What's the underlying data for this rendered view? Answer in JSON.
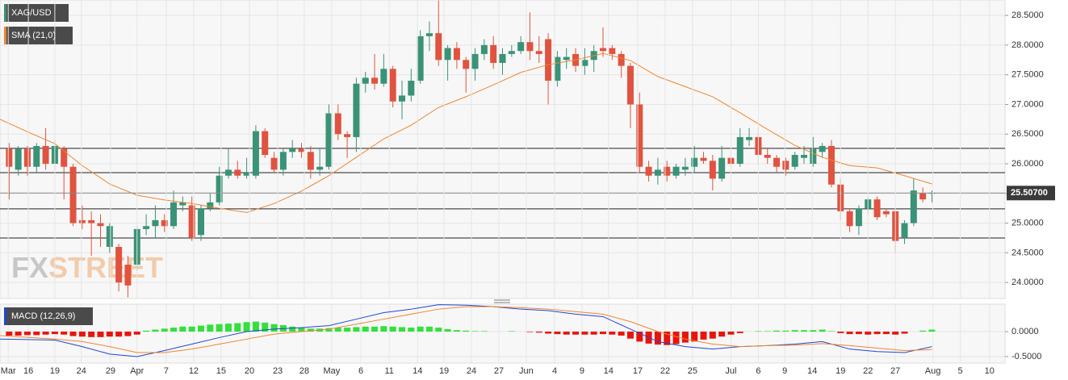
{
  "chart_data": [
    {
      "type": "candlestick",
      "name": "XAG/USD",
      "up_color": "#3a9277",
      "down_color": "#e0533f",
      "x": [
        1,
        2,
        3,
        4,
        5,
        6,
        7,
        8,
        9,
        10,
        11,
        12,
        13,
        14,
        15,
        16,
        17,
        18,
        19,
        20,
        21,
        22,
        23,
        24,
        25,
        26,
        27,
        28,
        29,
        30,
        31,
        32,
        33,
        34,
        35,
        36,
        37,
        38,
        39,
        40,
        41,
        42,
        43,
        44,
        45,
        46,
        47,
        48,
        49,
        50,
        51,
        52,
        53,
        54,
        55,
        56,
        57,
        58,
        59,
        60,
        61,
        62,
        63,
        64,
        65,
        66,
        67,
        68,
        69,
        70,
        71,
        72,
        73,
        74,
        75,
        76,
        77,
        78,
        79,
        80,
        81,
        82,
        83,
        84,
        85,
        86,
        87,
        88,
        89,
        90,
        91,
        92,
        93,
        94,
        95,
        96,
        97,
        98,
        99,
        100,
        101,
        102
      ],
      "open": [
        26.25,
        25.9,
        26.25,
        25.95,
        26.3,
        26.0,
        26.25,
        25.95,
        25.05,
        25.05,
        25.0,
        24.6,
        24.6,
        24.3,
        24.3,
        24.9,
        24.95,
        25.05,
        24.95,
        25.3,
        25.3,
        24.8,
        25.25,
        25.35,
        25.8,
        25.9,
        25.8,
        25.8,
        26.55,
        26.1,
        25.9,
        26.2,
        26.25,
        26.2,
        25.9,
        25.95,
        26.85,
        26.5,
        26.45,
        27.35,
        27.45,
        27.35,
        27.6,
        27.05,
        27.15,
        27.4,
        28.15,
        28.2,
        27.75,
        27.95,
        27.75,
        27.6,
        27.85,
        28.0,
        27.7,
        27.85,
        27.9,
        28.05,
        27.9,
        28.1,
        27.4,
        27.75,
        27.85,
        27.65,
        27.75,
        27.95,
        27.95,
        27.85,
        27.65,
        27.0,
        25.95,
        25.8,
        25.95,
        25.8,
        25.9,
        25.95,
        26.1,
        26.05,
        25.75,
        26.1,
        26.0,
        26.4,
        26.45,
        26.15,
        26.1,
        26.05,
        25.95,
        26.1,
        26.0,
        26.2,
        26.3,
        25.65,
        25.2,
        24.95,
        25.25,
        25.4,
        25.2,
        25.2,
        24.75,
        25.0,
        25.5,
        25.5
      ],
      "high": [
        26.35,
        26.3,
        26.3,
        26.35,
        26.6,
        26.4,
        26.3,
        26.0,
        25.3,
        25.2,
        25.15,
        25.0,
        24.65,
        24.45,
        24.95,
        25.15,
        25.3,
        25.15,
        25.55,
        25.45,
        25.45,
        25.3,
        25.5,
        25.95,
        26.25,
        26.05,
        26.1,
        26.65,
        26.6,
        26.2,
        26.25,
        26.4,
        26.35,
        26.3,
        26.25,
        27.0,
        27.0,
        26.55,
        27.45,
        27.55,
        27.85,
        27.85,
        27.65,
        27.4,
        27.6,
        28.25,
        28.4,
        28.75,
        28.0,
        28.05,
        27.8,
        27.95,
        28.1,
        28.15,
        27.95,
        28.0,
        28.15,
        28.55,
        28.15,
        28.2,
        27.9,
        27.95,
        27.95,
        27.95,
        28.0,
        28.3,
        28.0,
        27.9,
        27.7,
        27.2,
        26.05,
        26.1,
        26.05,
        26.0,
        26.1,
        26.3,
        26.2,
        26.15,
        26.3,
        26.2,
        26.6,
        26.6,
        26.6,
        26.25,
        26.15,
        26.1,
        26.2,
        26.3,
        26.45,
        26.35,
        26.4,
        25.75,
        25.25,
        25.3,
        25.45,
        25.45,
        25.25,
        25.25,
        25.05,
        25.75,
        25.6,
        25.55
      ],
      "low": [
        25.4,
        25.8,
        25.8,
        25.85,
        25.9,
        25.9,
        25.4,
        24.95,
        24.9,
        24.45,
        24.6,
        24.5,
        23.85,
        23.75,
        24.2,
        24.8,
        24.75,
        24.85,
        24.9,
        25.2,
        24.7,
        24.7,
        25.2,
        25.3,
        25.75,
        25.75,
        25.75,
        25.75,
        26.1,
        25.85,
        25.8,
        26.1,
        26.1,
        25.75,
        25.8,
        25.9,
        26.4,
        26.1,
        26.2,
        27.2,
        27.25,
        27.3,
        26.95,
        26.75,
        27.05,
        27.35,
        27.9,
        27.65,
        27.4,
        27.6,
        27.2,
        27.4,
        27.75,
        27.6,
        27.5,
        27.8,
        27.85,
        27.75,
        27.7,
        27.0,
        27.3,
        27.6,
        27.55,
        27.5,
        27.55,
        27.8,
        27.75,
        27.45,
        26.6,
        25.85,
        25.7,
        25.65,
        25.7,
        25.75,
        25.8,
        25.85,
        26.0,
        25.55,
        25.7,
        25.95,
        25.95,
        26.3,
        26.0,
        26.0,
        25.85,
        25.8,
        25.9,
        26.0,
        25.95,
        26.1,
        25.6,
        25.05,
        24.85,
        24.8,
        25.15,
        25.05,
        25.1,
        24.5,
        24.65,
        24.95,
        25.35,
        25.35
      ],
      "close": [
        25.95,
        26.25,
        25.95,
        26.3,
        26.0,
        26.3,
        25.95,
        25.0,
        25.0,
        25.0,
        24.95,
        24.95,
        24.0,
        23.95,
        24.9,
        24.95,
        25.05,
        24.95,
        25.35,
        25.35,
        24.75,
        25.25,
        25.35,
        25.8,
        25.9,
        25.8,
        25.85,
        26.55,
        26.15,
        25.9,
        26.2,
        26.25,
        26.2,
        25.9,
        25.95,
        26.85,
        26.5,
        26.45,
        27.35,
        27.45,
        27.35,
        27.6,
        27.05,
        27.15,
        27.4,
        28.15,
        28.2,
        27.75,
        27.95,
        27.75,
        27.6,
        27.85,
        28.0,
        27.7,
        27.85,
        27.9,
        28.05,
        27.9,
        27.85,
        27.4,
        27.8,
        27.8,
        27.65,
        27.75,
        27.9,
        27.9,
        27.85,
        27.65,
        27.0,
        25.95,
        25.8,
        25.9,
        25.8,
        25.95,
        25.95,
        26.1,
        26.05,
        25.75,
        26.1,
        26.0,
        26.45,
        26.45,
        26.15,
        26.1,
        25.95,
        25.9,
        26.15,
        26.15,
        26.25,
        26.3,
        25.65,
        25.2,
        24.95,
        25.25,
        25.4,
        25.1,
        25.15,
        24.7,
        25.0,
        25.55,
        25.4,
        25.51
      ],
      "overlay": {
        "name": "SMA (21,0)",
        "color": "#f0852d",
        "x": [
          0,
          3,
          6,
          9,
          12,
          15,
          18,
          21,
          24,
          27,
          30,
          33,
          36,
          39,
          42,
          45,
          48,
          51,
          54,
          57,
          60,
          63,
          66,
          69,
          72,
          75,
          78,
          81,
          84,
          87,
          90,
          93,
          96,
          99,
          102
        ],
        "values": [
          26.75,
          26.54,
          26.34,
          25.97,
          25.66,
          25.47,
          25.39,
          25.33,
          25.25,
          25.18,
          25.33,
          25.54,
          25.8,
          26.11,
          26.42,
          26.65,
          26.95,
          27.13,
          27.33,
          27.54,
          27.67,
          27.75,
          27.86,
          27.74,
          27.47,
          27.3,
          27.13,
          26.86,
          26.58,
          26.31,
          26.11,
          25.97,
          25.93,
          25.8,
          25.66
        ]
      },
      "levels": [
        26.26,
        25.85,
        25.24,
        24.75
      ],
      "level_color": "#222222",
      "last_price": {
        "value": 25.507,
        "label": "25.50700"
      },
      "xlim": [
        0,
        110
      ],
      "ylim": [
        23.73,
        28.76
      ],
      "yticks": [
        {
          "value": 24,
          "label": "24.0000"
        },
        {
          "value": 24.5,
          "label": "24.5000"
        },
        {
          "value": 25,
          "label": "25.0000"
        },
        {
          "value": 25.5,
          "label": "25.5000"
        },
        {
          "value": 26,
          "label": "26.0000"
        },
        {
          "value": 26.5,
          "label": "26.5000"
        },
        {
          "value": 27,
          "label": "27.0000"
        },
        {
          "value": 27.5,
          "label": "27.5000"
        },
        {
          "value": 28,
          "label": "28.0000"
        },
        {
          "value": 28.5,
          "label": "28.5000"
        }
      ],
      "grid": true,
      "watermark": [
        "FX",
        "STREET"
      ]
    },
    {
      "type": "macd",
      "name": "MACD (12,26,9)",
      "legend_color": "#2146d4",
      "histogram": {
        "up_color": "#33e03d",
        "down_color": "#e8140c",
        "x": [
          1,
          2,
          3,
          4,
          5,
          6,
          7,
          8,
          9,
          10,
          11,
          12,
          13,
          14,
          15,
          16,
          17,
          18,
          19,
          20,
          21,
          22,
          23,
          24,
          25,
          26,
          27,
          28,
          29,
          30,
          31,
          32,
          33,
          34,
          35,
          36,
          37,
          38,
          39,
          40,
          41,
          42,
          43,
          44,
          45,
          46,
          47,
          48,
          49,
          50,
          51,
          52,
          53,
          54,
          55,
          56,
          57,
          58,
          59,
          60,
          61,
          62,
          63,
          64,
          65,
          66,
          67,
          68,
          69,
          70,
          71,
          72,
          73,
          74,
          75,
          76,
          77,
          78,
          79,
          80,
          81,
          82,
          83,
          84,
          85,
          86,
          87,
          88,
          89,
          90,
          91,
          92,
          93,
          94,
          95,
          96,
          97,
          98,
          99,
          100,
          101,
          102
        ],
        "values": [
          -0.08,
          -0.08,
          -0.07,
          -0.07,
          -0.06,
          -0.05,
          -0.06,
          -0.09,
          -0.1,
          -0.11,
          -0.11,
          -0.1,
          -0.1,
          -0.09,
          -0.06,
          0.02,
          0.04,
          0.06,
          0.08,
          0.1,
          0.1,
          0.12,
          0.14,
          0.15,
          0.16,
          0.17,
          0.19,
          0.2,
          0.18,
          0.15,
          0.13,
          0.1,
          0.08,
          0.06,
          0.06,
          0.07,
          0.08,
          0.08,
          0.09,
          0.1,
          0.1,
          0.11,
          0.1,
          0.09,
          0.08,
          0.1,
          0.1,
          0.08,
          0.05,
          0.03,
          0.02,
          0.01,
          0.01,
          0.0,
          0.0,
          0.01,
          0.0,
          -0.01,
          -0.02,
          -0.04,
          -0.05,
          -0.06,
          -0.06,
          -0.06,
          -0.06,
          -0.05,
          -0.06,
          -0.08,
          -0.14,
          -0.2,
          -0.24,
          -0.26,
          -0.27,
          -0.25,
          -0.22,
          -0.2,
          -0.16,
          -0.14,
          -0.1,
          -0.06,
          -0.03,
          0.0,
          0.01,
          0.01,
          0.02,
          0.02,
          0.03,
          0.03,
          0.03,
          0.04,
          0.01,
          -0.03,
          -0.05,
          -0.05,
          -0.06,
          -0.05,
          -0.05,
          -0.06,
          -0.04,
          0.0,
          0.02,
          0.04
        ]
      },
      "lines": [
        {
          "color": "#2146d4",
          "x": [
            0,
            6,
            9,
            12,
            15,
            18,
            21,
            24,
            27,
            30,
            33,
            36,
            39,
            42,
            45,
            48,
            51,
            54,
            57,
            60,
            63,
            66,
            69,
            72,
            75,
            78,
            81,
            84,
            87,
            90,
            93,
            96,
            99,
            102
          ],
          "values": [
            -0.15,
            -0.17,
            -0.3,
            -0.45,
            -0.5,
            -0.38,
            -0.25,
            -0.12,
            0.0,
            0.05,
            0.08,
            0.12,
            0.25,
            0.38,
            0.45,
            0.54,
            0.53,
            0.5,
            0.45,
            0.42,
            0.35,
            0.3,
            0.05,
            -0.2,
            -0.3,
            -0.35,
            -0.3,
            -0.28,
            -0.25,
            -0.2,
            -0.35,
            -0.4,
            -0.42,
            -0.3
          ]
        },
        {
          "color": "#f0852d",
          "x": [
            0,
            6,
            9,
            12,
            15,
            18,
            21,
            24,
            27,
            30,
            33,
            36,
            39,
            42,
            45,
            48,
            51,
            54,
            57,
            60,
            63,
            66,
            69,
            72,
            75,
            78,
            81,
            84,
            87,
            90,
            93,
            96,
            99,
            102
          ],
          "values": [
            -0.08,
            -0.15,
            -0.2,
            -0.3,
            -0.42,
            -0.42,
            -0.35,
            -0.25,
            -0.15,
            -0.05,
            0.0,
            0.05,
            0.15,
            0.25,
            0.35,
            0.45,
            0.5,
            0.5,
            0.48,
            0.45,
            0.4,
            0.35,
            0.2,
            0.0,
            -0.15,
            -0.25,
            -0.3,
            -0.28,
            -0.27,
            -0.24,
            -0.28,
            -0.33,
            -0.38,
            -0.36
          ]
        }
      ],
      "xlim": [
        0,
        110
      ],
      "ylim": [
        -0.63,
        0.55
      ],
      "yticks": [
        {
          "value": -0.5,
          "label": "-0.5000"
        },
        {
          "value": 0,
          "label": "0.0000"
        }
      ],
      "xticks": [
        {
          "value": 0.9,
          "label": "Mar"
        },
        {
          "value": 3.1,
          "label": "16"
        },
        {
          "value": 6.0,
          "label": "19"
        },
        {
          "value": 8.9,
          "label": "24"
        },
        {
          "value": 12.1,
          "label": "29"
        },
        {
          "value": 15.0,
          "label": "Apr"
        },
        {
          "value": 18.2,
          "label": "7"
        },
        {
          "value": 21.2,
          "label": "12"
        },
        {
          "value": 24.2,
          "label": "15"
        },
        {
          "value": 27.3,
          "label": "20"
        },
        {
          "value": 30.4,
          "label": "23"
        },
        {
          "value": 33.3,
          "label": "28"
        },
        {
          "value": 36.3,
          "label": "May"
        },
        {
          "value": 39.5,
          "label": "6"
        },
        {
          "value": 42.6,
          "label": "11"
        },
        {
          "value": 45.7,
          "label": "14"
        },
        {
          "value": 48.6,
          "label": "19"
        },
        {
          "value": 51.6,
          "label": "24"
        },
        {
          "value": 54.6,
          "label": "27"
        },
        {
          "value": 57.6,
          "label": "Jun"
        },
        {
          "value": 60.7,
          "label": "4"
        },
        {
          "value": 63.7,
          "label": "9"
        },
        {
          "value": 66.6,
          "label": "14"
        },
        {
          "value": 69.8,
          "label": "17"
        },
        {
          "value": 72.8,
          "label": "22"
        },
        {
          "value": 75.8,
          "label": "25"
        },
        {
          "value": 80.0,
          "label": "Jul"
        },
        {
          "value": 83.0,
          "label": "6"
        },
        {
          "value": 85.9,
          "label": "9"
        },
        {
          "value": 88.9,
          "label": "14"
        },
        {
          "value": 92.0,
          "label": "19"
        },
        {
          "value": 95.0,
          "label": "22"
        },
        {
          "value": 98.0,
          "label": "27"
        },
        {
          "value": 102.1,
          "label": "Aug"
        },
        {
          "value": 105.1,
          "label": "5"
        },
        {
          "value": 108.3,
          "label": "10"
        }
      ],
      "grid": true
    }
  ]
}
